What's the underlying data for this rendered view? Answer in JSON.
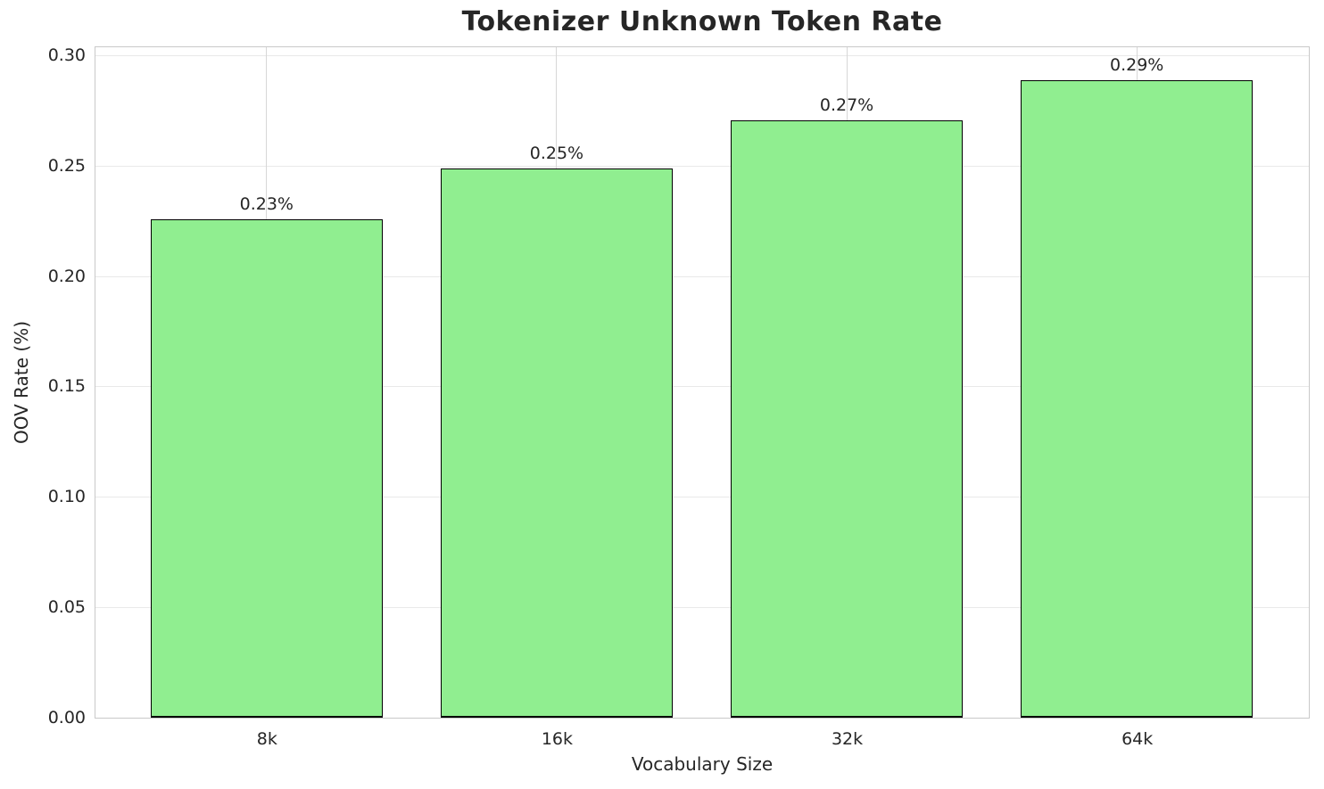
{
  "chart_data": {
    "type": "bar",
    "title": "Tokenizer Unknown Token Rate",
    "xlabel": "Vocabulary Size",
    "ylabel": "OOV Rate (%)",
    "categories": [
      "8k",
      "16k",
      "32k",
      "64k"
    ],
    "values": [
      0.226,
      0.249,
      0.271,
      0.289
    ],
    "bar_labels": [
      "0.23%",
      "0.25%",
      "0.27%",
      "0.29%"
    ],
    "yticks": [
      "0.00",
      "0.05",
      "0.10",
      "0.15",
      "0.20",
      "0.25",
      "0.30"
    ],
    "ylim": [
      0,
      0.3036
    ],
    "xlim": [
      -0.59,
      3.59
    ],
    "bar_width_units": 0.8,
    "grid": true,
    "legend": false,
    "colors": {
      "bar_fill": "#90EE90",
      "bar_edge": "#000000",
      "grid_horizontal": "#e9e9e9",
      "grid_vertical": "#d7d7d7",
      "spine": "#c9c9c9",
      "text": "#262626",
      "background": "#ffffff"
    }
  }
}
